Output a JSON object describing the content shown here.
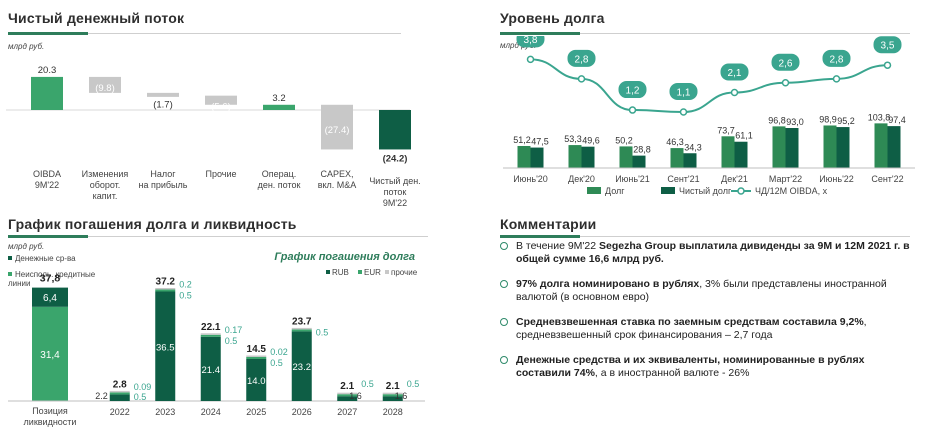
{
  "sections": {
    "fcf_title": "Чистый денежный поток",
    "debt_title": "Уровень долга",
    "schedule_title": "График погашения долга и ликвидность",
    "comments_title": "Комментарии"
  },
  "colors": {
    "dark_green": "#0e5e45",
    "green": "#2e8a55",
    "light_green": "#3aa56c",
    "gray": "#c8c8c8",
    "accent_line": "#2e7d5b",
    "teal": "#3aa58f"
  },
  "chart_data": [
    {
      "id": "fcf",
      "type": "bar",
      "unit_label": "млрд руб.",
      "categories": [
        "OIBDA 9M'22",
        "Изменения оборот. капит.",
        "Налог на прибыль",
        "Прочие",
        "Операц. ден. поток",
        "CAPEX, вкл. M&A",
        "Чистый ден. поток 9M'22"
      ],
      "category_lines": [
        [
          "OIBDA",
          "9M'22"
        ],
        [
          "Изменения",
          "оборот.",
          "капит."
        ],
        [
          "Налог",
          "на прибыль"
        ],
        [
          "Прочие"
        ],
        [
          "Операц.",
          "ден. поток"
        ],
        [
          "CAPEX,",
          "вкл. M&A"
        ],
        [
          "Чистый ден.",
          "поток",
          "9M'22"
        ]
      ],
      "values": [
        20.3,
        -9.8,
        -1.7,
        -5.6,
        3.2,
        -27.4,
        -24.2
      ],
      "labels": [
        "20.3",
        "(9.8)",
        "(1.7)",
        "(5.6)",
        "3.2",
        "(27.4)",
        "(24.2)"
      ],
      "waterfall": true
    },
    {
      "id": "debt",
      "type": "bar",
      "unit_label": "млрд руб.",
      "categories": [
        "Июнь'20",
        "Дек'20",
        "Июнь'21",
        "Сент'21",
        "Дек'21",
        "Март'22",
        "Июнь'22",
        "Сент'22"
      ],
      "series": [
        {
          "name": "Долг",
          "values": [
            51.2,
            53.3,
            50.2,
            46.3,
            73.7,
            96.8,
            98.9,
            103.8
          ],
          "labels": [
            "51,2",
            "53,3",
            "50,2",
            "46,3",
            "73,7",
            "96,8",
            "98,9",
            "103,8"
          ]
        },
        {
          "name": "Чистый долг",
          "values": [
            47.5,
            49.6,
            28.8,
            34.3,
            61.1,
            93.0,
            95.2,
            97.4
          ],
          "labels": [
            "47,5",
            "49,6",
            "28,8",
            "34,3",
            "61,1",
            "93,0",
            "95,2",
            "97,4"
          ]
        }
      ],
      "line_series": {
        "name": "ЧД/12М OIBDA, х",
        "values": [
          3.8,
          2.8,
          1.2,
          1.1,
          2.1,
          2.6,
          2.8,
          3.5
        ],
        "labels": [
          "3,8",
          "2,8",
          "1,2",
          "1,1",
          "2,1",
          "2,6",
          "2,8",
          "3,5"
        ]
      },
      "legend": [
        "Долг",
        "Чистый долг",
        "ЧД/12М OIBDA, х"
      ]
    },
    {
      "id": "liquidity",
      "type": "bar",
      "unit_label": "млрд руб.",
      "category": "Позиция ликвидности",
      "category_lines": [
        "Позиция",
        "ликвидности"
      ],
      "total_label": "37,8",
      "segments": [
        {
          "name": "Неисполь. кредитные линии",
          "value": 31.4,
          "label": "31,4"
        },
        {
          "name": "Денежные ср-ва",
          "value": 6.4,
          "label": "6,4"
        }
      ],
      "legend": [
        "Денежные ср-ва",
        "Неисполь. кредитные линии"
      ]
    },
    {
      "id": "schedule",
      "type": "bar",
      "title": "График погашения долга",
      "categories": [
        "2022",
        "2023",
        "2024",
        "2025",
        "2026",
        "2027",
        "2028"
      ],
      "totals": [
        "2.8",
        "37.2",
        "22.1",
        "14.5",
        "23.7",
        "2.1",
        "2.1"
      ],
      "series": [
        {
          "name": "RUB",
          "values": [
            2.2,
            36.5,
            21.4,
            14.0,
            23.2,
            1.6,
            1.6
          ],
          "labels": [
            "2.2",
            "36.5",
            "21.4",
            "14.0",
            "23.2",
            "1.6",
            "1.6"
          ]
        },
        {
          "name": "EUR",
          "values": [
            0.5,
            0.5,
            0.5,
            0.5,
            0.5,
            0.5,
            0.5
          ],
          "labels": [
            "0.5",
            "0.5",
            "0.5",
            "0.5",
            "0.5",
            "0.5",
            "0.5"
          ]
        },
        {
          "name": "прочие",
          "values": [
            0.09,
            0.2,
            0.17,
            0.02,
            0,
            0,
            0
          ],
          "labels": [
            "0.09",
            "0.2",
            "0.17",
            "0.02",
            "",
            "",
            ""
          ]
        }
      ],
      "legend": [
        "RUB",
        "EUR",
        "прочие"
      ]
    }
  ],
  "comments": [
    {
      "parts": [
        {
          "b": false,
          "t": "В течение 9М'22 "
        },
        {
          "b": true,
          "t": "Segezha Group выплатила дивиденды за 9М и 12М 2021 г. в общей сумме 16,6 млрд руб."
        }
      ]
    },
    {
      "parts": [
        {
          "b": true,
          "t": "97% долга номинировано в рублях"
        },
        {
          "b": false,
          "t": ", 3% были представлены иностранной валютой (в основном евро)"
        }
      ]
    },
    {
      "parts": [
        {
          "b": true,
          "t": "Средневзвешенная ставка по заемным средствам составила 9,2%"
        },
        {
          "b": false,
          "t": ", средневзвешенный срок финансирования – 2,7 года"
        }
      ]
    },
    {
      "parts": [
        {
          "b": true,
          "t": "Денежные средства и их эквиваленты, номинированные в рублях составили 74%"
        },
        {
          "b": false,
          "t": ", а в иностранной валюте - 26%"
        }
      ]
    }
  ]
}
